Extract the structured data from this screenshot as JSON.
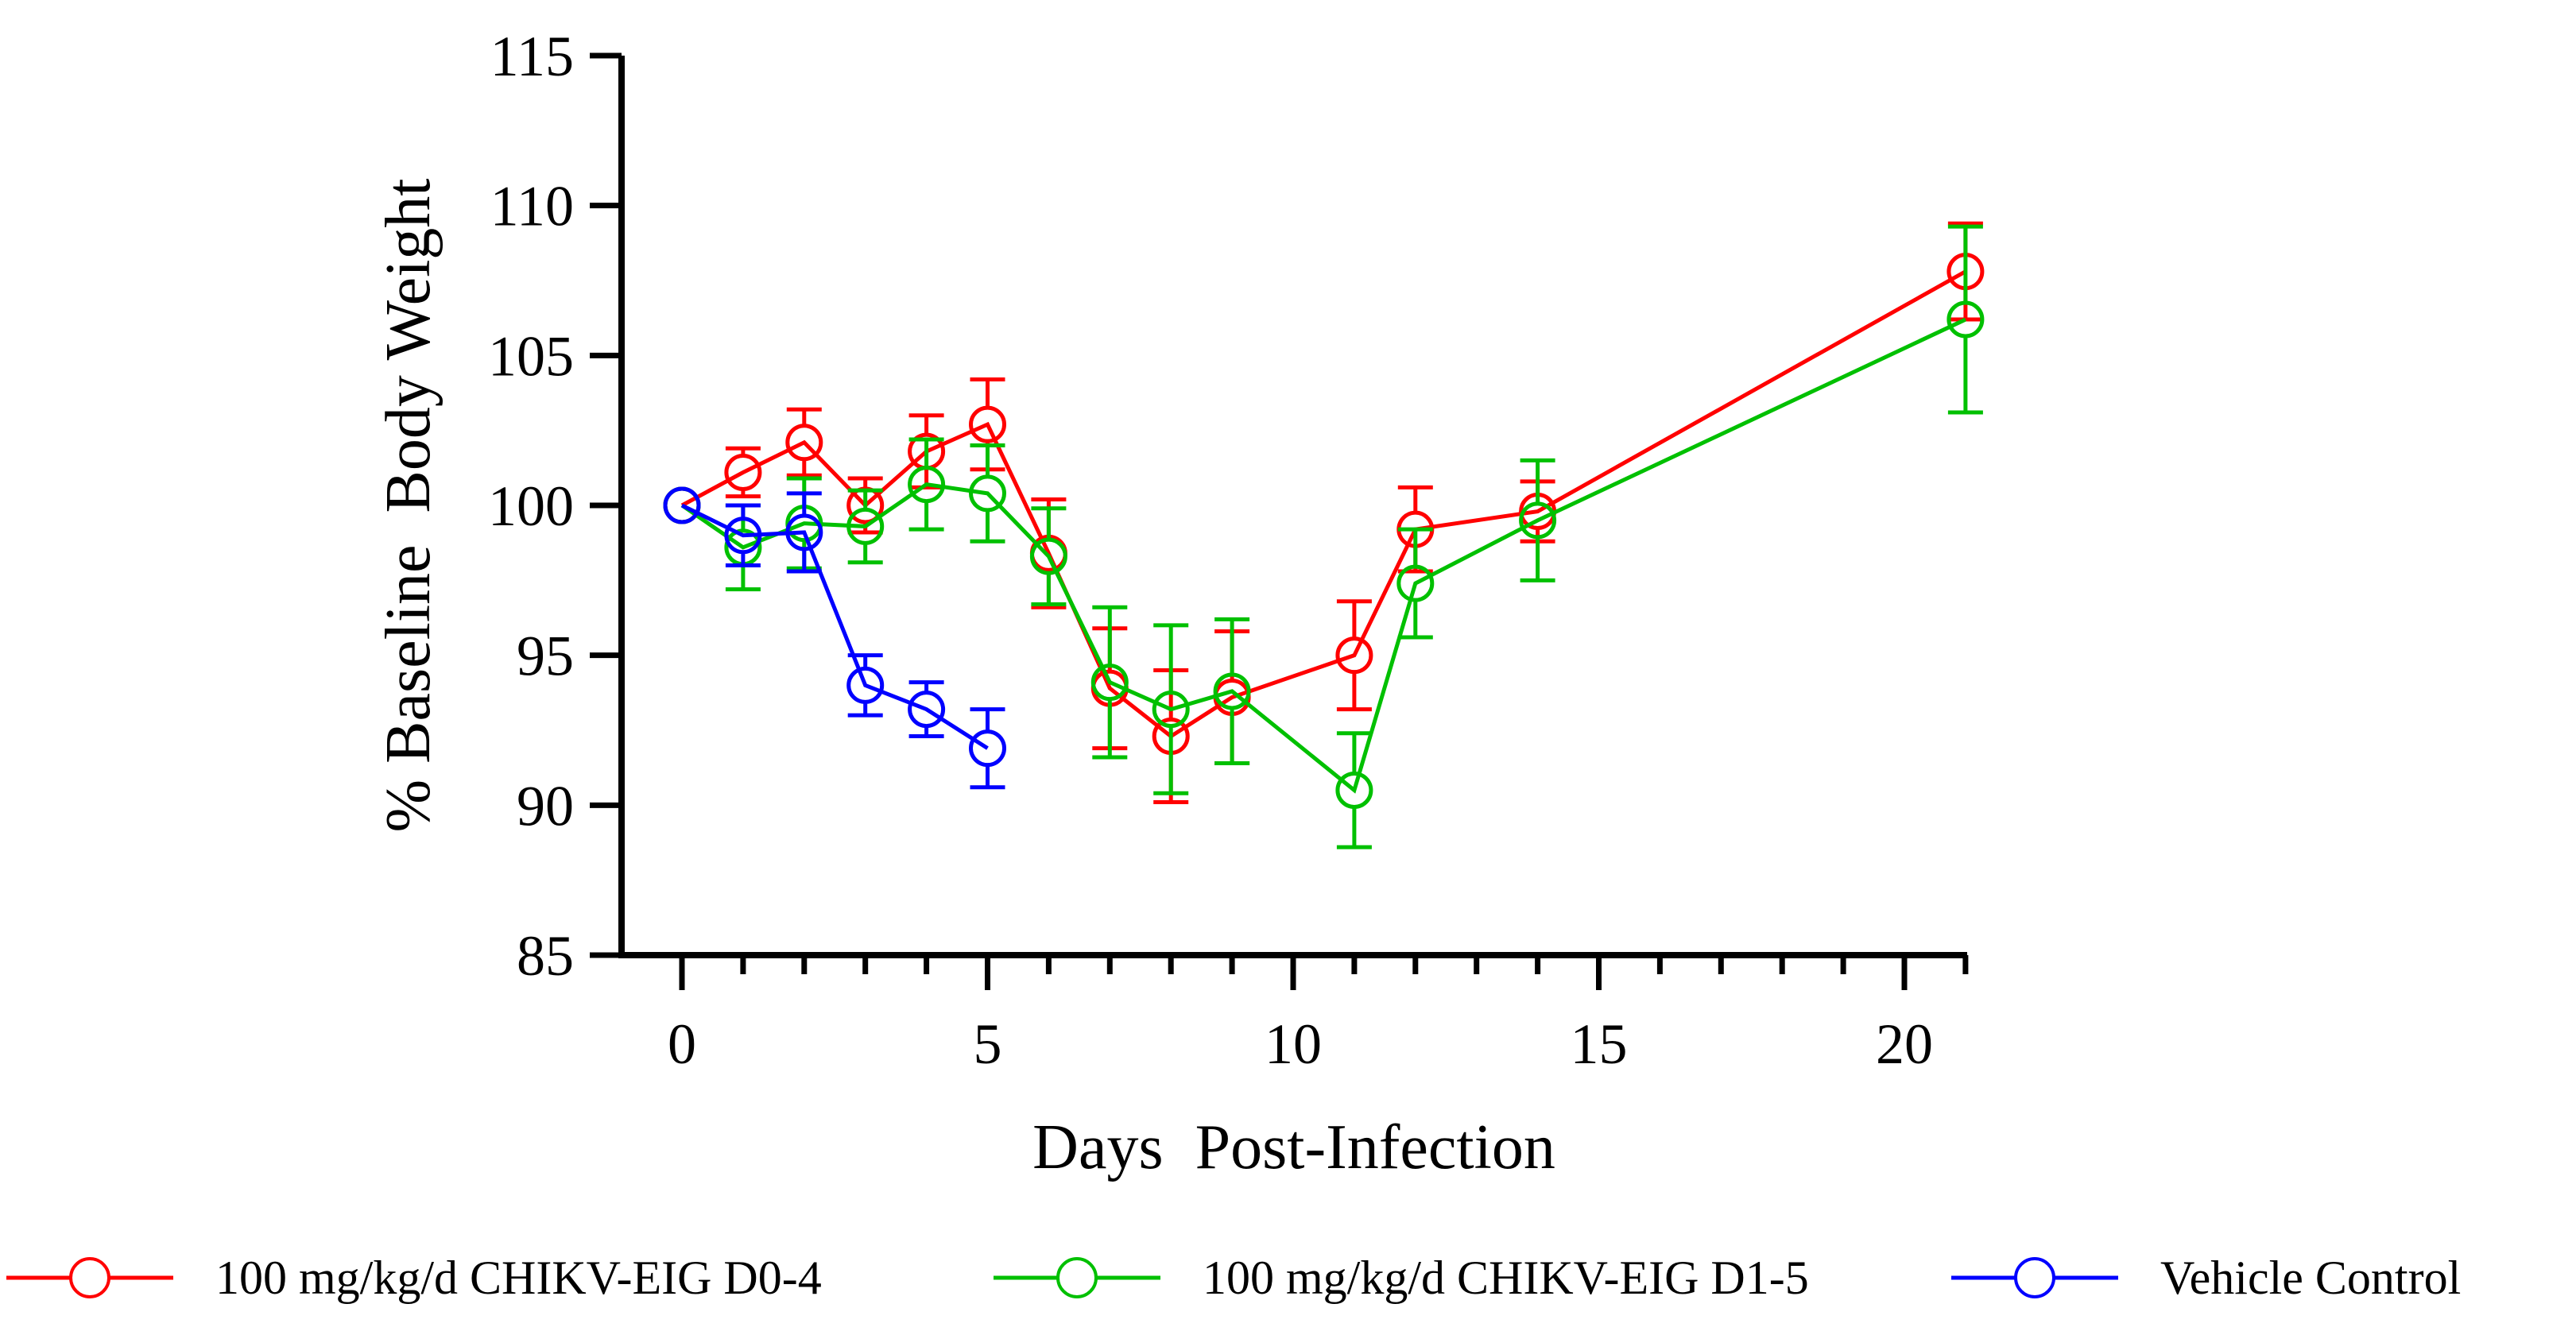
{
  "chart_data": {
    "type": "line",
    "title": "",
    "xlabel": "Days  Post-Infection",
    "ylabel": "% Baseline  Body Weight",
    "xlim": [
      -1,
      21
    ],
    "ylim": [
      85,
      115
    ],
    "xticks": [
      0,
      5,
      10,
      15,
      20
    ],
    "yticks": [
      85,
      90,
      95,
      100,
      105,
      110,
      115
    ],
    "grid": false,
    "legend_position": "bottom",
    "series": [
      {
        "name": "100 mg/kg/d CHIKV-EIG D0-4",
        "color": "#ff0000",
        "x": [
          0,
          1,
          2,
          3,
          4,
          5,
          6,
          7,
          8,
          9,
          11,
          12,
          14,
          21
        ],
        "y": [
          100,
          101.1,
          102.1,
          100.0,
          101.8,
          102.7,
          98.4,
          93.9,
          92.3,
          93.6,
          95.0,
          99.2,
          99.8,
          107.8
        ],
        "err": [
          0,
          0.8,
          1.1,
          0.9,
          1.2,
          1.5,
          1.8,
          2.0,
          2.2,
          2.2,
          1.8,
          1.4,
          1.0,
          1.6
        ]
      },
      {
        "name": "100 mg/kg/d CHIKV-EIG D1-5",
        "color": "#00c000",
        "x": [
          0,
          1,
          2,
          3,
          4,
          5,
          6,
          7,
          8,
          9,
          11,
          12,
          14,
          21
        ],
        "y": [
          100,
          98.6,
          99.4,
          99.3,
          100.7,
          100.4,
          98.3,
          94.1,
          93.2,
          93.8,
          90.5,
          97.4,
          99.5,
          106.2
        ],
        "err": [
          0,
          1.4,
          1.5,
          1.2,
          1.5,
          1.6,
          1.6,
          2.5,
          2.8,
          2.4,
          1.9,
          1.8,
          2.0,
          3.1
        ]
      },
      {
        "name": "Vehicle Control",
        "color": "#0000ff",
        "x": [
          0,
          1,
          2,
          3,
          4,
          5
        ],
        "y": [
          100,
          99.0,
          99.1,
          94.0,
          93.2,
          91.9
        ],
        "err": [
          0,
          1.0,
          1.3,
          1.0,
          0.9,
          1.3
        ]
      }
    ]
  }
}
